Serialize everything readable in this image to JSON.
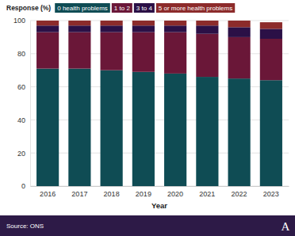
{
  "chart_data": {
    "type": "bar",
    "stacked": true,
    "ylabel": "Response (%)",
    "xlabel": "Year",
    "source": "Source: ONS",
    "logo": "A",
    "categories": [
      "2016",
      "2017",
      "2018",
      "2019",
      "2020",
      "2021",
      "2022",
      "2023"
    ],
    "series": [
      {
        "name": "0 health problems",
        "color": "#0f4c54",
        "values": [
          71,
          71,
          70,
          69,
          68,
          66,
          65,
          64
        ]
      },
      {
        "name": "1 to 2",
        "color": "#6a1738",
        "values": [
          22,
          22,
          23,
          24,
          25,
          26,
          25,
          25
        ]
      },
      {
        "name": "3 to 4",
        "color": "#2b1046",
        "values": [
          4,
          4,
          4,
          4,
          4,
          5,
          6,
          6
        ]
      },
      {
        "name": "5 or more health problems",
        "color": "#8c2b2b",
        "values": [
          3,
          3,
          3,
          3,
          3,
          3,
          4,
          4
        ]
      }
    ],
    "ylim": [
      0,
      100
    ],
    "yticks": [
      0,
      20,
      40,
      60,
      80,
      100
    ],
    "grid": true,
    "legend": "top"
  }
}
